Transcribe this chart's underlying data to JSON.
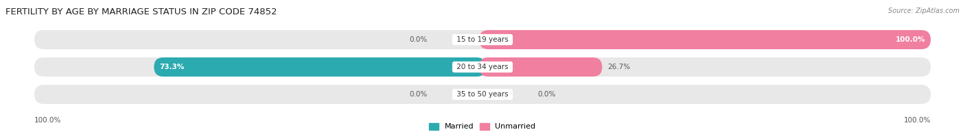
{
  "title": "FERTILITY BY AGE BY MARRIAGE STATUS IN ZIP CODE 74852",
  "source": "Source: ZipAtlas.com",
  "categories": [
    "15 to 19 years",
    "20 to 34 years",
    "35 to 50 years"
  ],
  "married_values": [
    0.0,
    73.3,
    0.0
  ],
  "unmarried_values": [
    100.0,
    26.7,
    0.0
  ],
  "married_color": "#2baab0",
  "unmarried_color": "#f07fa0",
  "married_light_color": "#8fd0d2",
  "unmarried_light_color": "#f5b8c8",
  "bar_bg_color": "#e8e8e8",
  "title_fontsize": 9.5,
  "source_fontsize": 7,
  "label_fontsize": 7.5,
  "category_fontsize": 7.5,
  "legend_fontsize": 8,
  "axis_label_fontsize": 7.5,
  "left_axis_label": "100.0%",
  "right_axis_label": "100.0%",
  "background_color": "#ffffff"
}
